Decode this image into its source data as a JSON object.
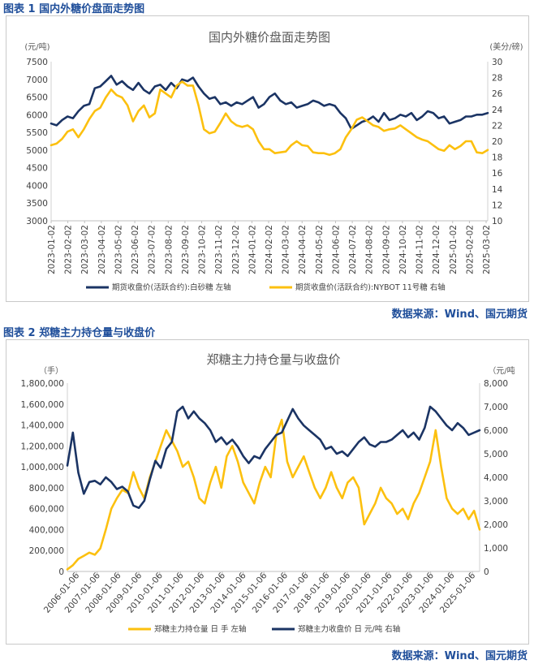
{
  "captions": {
    "fig1": "图表 1  国内外糖价盘面走势图",
    "fig2": "图表 2  郑糖主力持仓量与收盘价"
  },
  "sources": {
    "fig1": "数据来源：Wind、国元期货",
    "fig2": "数据来源：Wind、国元期货"
  },
  "colors": {
    "navy": "#1b3464",
    "gold": "#fcc00f",
    "caption": "#1f4e9a"
  },
  "chart_data": [
    {
      "type": "line",
      "title": "国内外糖价盘面走势图",
      "left_unit": "(元/吨)",
      "right_unit": "(美分/磅)",
      "x_labels": [
        "2023-01-02",
        "2023-02-02",
        "2023-03-02",
        "2023-04-02",
        "2023-05-02",
        "2023-06-02",
        "2023-07-02",
        "2023-08-02",
        "2023-09-02",
        "2023-10-02",
        "2023-11-02",
        "2023-12-02",
        "2024-01-02",
        "2024-02-02",
        "2024-03-02",
        "2024-04-02",
        "2024-05-02",
        "2024-06-02",
        "2024-07-02",
        "2024-08-02",
        "2024-09-02",
        "2024-10-02",
        "2024-11-02",
        "2024-12-02",
        "2025-01-02",
        "2025-02-02",
        "2025-03-02"
      ],
      "y_left": {
        "min": 3000,
        "max": 7500,
        "step": 500
      },
      "y_right": {
        "min": 10,
        "max": 30,
        "step": 2
      },
      "legend_position": "bottom",
      "series": [
        {
          "name": "期货收盘价(活跃合约):白砂糖  左轴",
          "axis": "left",
          "color": "#1b3464",
          "values": [
            5750,
            5700,
            5850,
            5950,
            5900,
            6100,
            6250,
            6300,
            6750,
            6800,
            6950,
            7100,
            6850,
            6950,
            6800,
            6700,
            6900,
            6700,
            6600,
            6800,
            6850,
            6700,
            6900,
            6750,
            7000,
            6950,
            7050,
            6800,
            6600,
            6450,
            6500,
            6300,
            6350,
            6250,
            6350,
            6300,
            6400,
            6500,
            6200,
            6300,
            6500,
            6600,
            6400,
            6300,
            6350,
            6200,
            6250,
            6300,
            6400,
            6350,
            6250,
            6300,
            6250,
            6050,
            5900,
            5600,
            5700,
            5800,
            5850,
            5950,
            5800,
            6050,
            5850,
            5900,
            6000,
            5950,
            6050,
            5850,
            5950,
            6100,
            6050,
            5900,
            5950,
            5750,
            5800,
            5850,
            5950,
            5950,
            6000,
            6000,
            6050
          ]
        },
        {
          "name": "期货收盘价(活跃合约):NYBOT 11号糖  右轴",
          "axis": "right",
          "color": "#fcc00f",
          "values": [
            19.5,
            19.7,
            20.3,
            21.2,
            21.5,
            20.5,
            21.5,
            22.8,
            23.8,
            24.2,
            25.5,
            26.5,
            25.8,
            25.5,
            24.5,
            22.5,
            23.8,
            24.5,
            23.0,
            23.5,
            26.5,
            26.0,
            25.5,
            27.0,
            27.5,
            27.0,
            27.0,
            24.5,
            21.5,
            21.0,
            21.2,
            22.3,
            23.5,
            22.5,
            22.0,
            21.8,
            22.0,
            21.5,
            20.0,
            19.0,
            19.0,
            18.5,
            18.6,
            18.7,
            19.5,
            20.0,
            19.5,
            19.4,
            18.6,
            18.5,
            18.5,
            18.3,
            18.5,
            19.0,
            20.5,
            21.5,
            22.7,
            23.0,
            22.5,
            22.0,
            21.8,
            21.3,
            21.5,
            21.6,
            22.0,
            21.5,
            21.0,
            20.5,
            20.2,
            20.0,
            19.5,
            19.0,
            18.8,
            19.5,
            19.0,
            19.4,
            20.0,
            20.0,
            18.6,
            18.5,
            18.9
          ]
        }
      ]
    },
    {
      "type": "line",
      "title": "郑糖主力持仓量与收盘价",
      "left_unit": "（手）",
      "right_unit": "（元/吨",
      "x_labels": [
        "2006-01-06",
        "2007-01-06",
        "2008-01-06",
        "2009-01-06",
        "2010-01-06",
        "2011-01-06",
        "2012-01-06",
        "2013-01-06",
        "2014-01-06",
        "2015-01-06",
        "2016-01-06",
        "2017-01-06",
        "2018-01-06",
        "2019-01-06",
        "2020-01-06",
        "2021-01-06",
        "2022-01-06",
        "2023-01-06",
        "2024-01-06",
        "2025-01-06"
      ],
      "y_left": {
        "min": 0,
        "max": 1800000,
        "step": 200000
      },
      "y_right": {
        "min": 0,
        "max": 8000,
        "step": 1000
      },
      "legend_position": "bottom",
      "series": [
        {
          "name": "郑糖主力持仓量 日 手  左轴",
          "axis": "left",
          "color": "#fcc00f",
          "values": [
            20000,
            60000,
            120000,
            150000,
            180000,
            160000,
            220000,
            400000,
            600000,
            700000,
            780000,
            750000,
            950000,
            800000,
            700000,
            900000,
            1050000,
            1200000,
            1350000,
            1250000,
            1150000,
            1000000,
            1050000,
            900000,
            700000,
            650000,
            850000,
            1000000,
            800000,
            1100000,
            1200000,
            1050000,
            850000,
            750000,
            650000,
            850000,
            1000000,
            900000,
            1300000,
            1450000,
            1050000,
            900000,
            1000000,
            1100000,
            950000,
            800000,
            700000,
            800000,
            950000,
            800000,
            700000,
            850000,
            900000,
            800000,
            450000,
            550000,
            650000,
            800000,
            700000,
            650000,
            550000,
            600000,
            500000,
            650000,
            750000,
            900000,
            1050000,
            1350000,
            1000000,
            700000,
            600000,
            550000,
            600000,
            500000,
            580000,
            400000
          ]
        },
        {
          "name": "郑糖主力收盘价 日 元/吨  右轴",
          "axis": "right",
          "color": "#1b3464",
          "values": [
            4500,
            5900,
            4200,
            3300,
            3800,
            3850,
            3700,
            4000,
            3800,
            3500,
            3600,
            3400,
            2800,
            2700,
            3000,
            3900,
            4700,
            4400,
            5200,
            5500,
            6800,
            7000,
            6500,
            6800,
            6500,
            6300,
            6000,
            5500,
            5700,
            5400,
            5600,
            5300,
            4900,
            4600,
            4900,
            4800,
            5200,
            5500,
            5800,
            5900,
            6400,
            6900,
            6500,
            6200,
            6000,
            5800,
            5600,
            5200,
            5300,
            5000,
            5100,
            4900,
            5200,
            5500,
            5700,
            5400,
            5300,
            5500,
            5500,
            5600,
            5800,
            6000,
            5700,
            5900,
            5600,
            6100,
            7000,
            6800,
            6500,
            6200,
            6000,
            6300,
            6100,
            5800,
            5900,
            6000
          ]
        }
      ]
    }
  ]
}
